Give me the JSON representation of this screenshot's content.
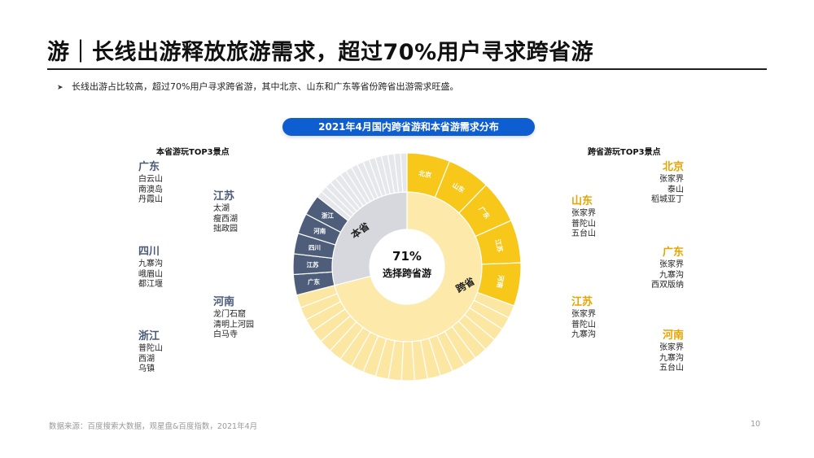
{
  "page": {
    "title": "游｜长线出游释放旅游需求，超过70%用户寻求跨省游",
    "bullet": "长线出游占比较高，超过70%用户寻求跨省游，其中北京、山东和广东等省份跨省出游需求旺盛。",
    "footer": "数据来源：百度搜索大数据，观星盘&百度指数，2021年4月",
    "page_number": "10"
  },
  "chart": {
    "heading": "2021年4月国内跨省游和本省游需求分布",
    "center_value": "71%",
    "center_text": "选择跨省游",
    "inner_labels": {
      "intra": "本省",
      "cross": "跨省"
    },
    "outer_cross_labels": [
      "北京",
      "山东",
      "广东",
      "江苏",
      "河南"
    ],
    "outer_intra_labels": [
      "广东",
      "江苏",
      "四川",
      "河南",
      "浙江"
    ],
    "colors": {
      "cross_inner": "#fde9a9",
      "cross_outer_top": "#f7c719",
      "cross_outer_rest": "#fbe6a2",
      "intra_inner": "#d6d8dd",
      "intra_outer_top": "#4e5e7a",
      "intra_outer_rest": "#e6e7ea",
      "pill": "#0e5ed1"
    }
  },
  "chart_data": {
    "type": "pie",
    "title": "2021年4月国内跨省游和本省游需求分布",
    "categories": [
      "跨省",
      "本省"
    ],
    "values": [
      71,
      29
    ],
    "unit": "%"
  },
  "intra_top3": {
    "heading": "本省游玩TOP3景点",
    "groups": [
      {
        "province": "广东",
        "spots": [
          "白云山",
          "南澳岛",
          "丹霞山"
        ]
      },
      {
        "province": "江苏",
        "spots": [
          "太湖",
          "瘦西湖",
          "拙政园"
        ]
      },
      {
        "province": "四川",
        "spots": [
          "九寨沟",
          "峨眉山",
          "都江堰"
        ]
      },
      {
        "province": "河南",
        "spots": [
          "龙门石窟",
          "清明上河园",
          "白马寺"
        ]
      },
      {
        "province": "浙江",
        "spots": [
          "普陀山",
          "西湖",
          "乌镇"
        ]
      }
    ]
  },
  "cross_top3": {
    "heading": "跨省游玩TOP3景点",
    "groups": [
      {
        "province": "北京",
        "spots": [
          "张家界",
          "泰山",
          "稻城亚丁"
        ]
      },
      {
        "province": "山东",
        "spots": [
          "张家界",
          "普陀山",
          "五台山"
        ]
      },
      {
        "province": "广东",
        "spots": [
          "张家界",
          "九寨沟",
          "西双版纳"
        ]
      },
      {
        "province": "江苏",
        "spots": [
          "张家界",
          "普陀山",
          "九寨沟"
        ]
      },
      {
        "province": "河南",
        "spots": [
          "张家界",
          "九寨沟",
          "五台山"
        ]
      }
    ]
  }
}
